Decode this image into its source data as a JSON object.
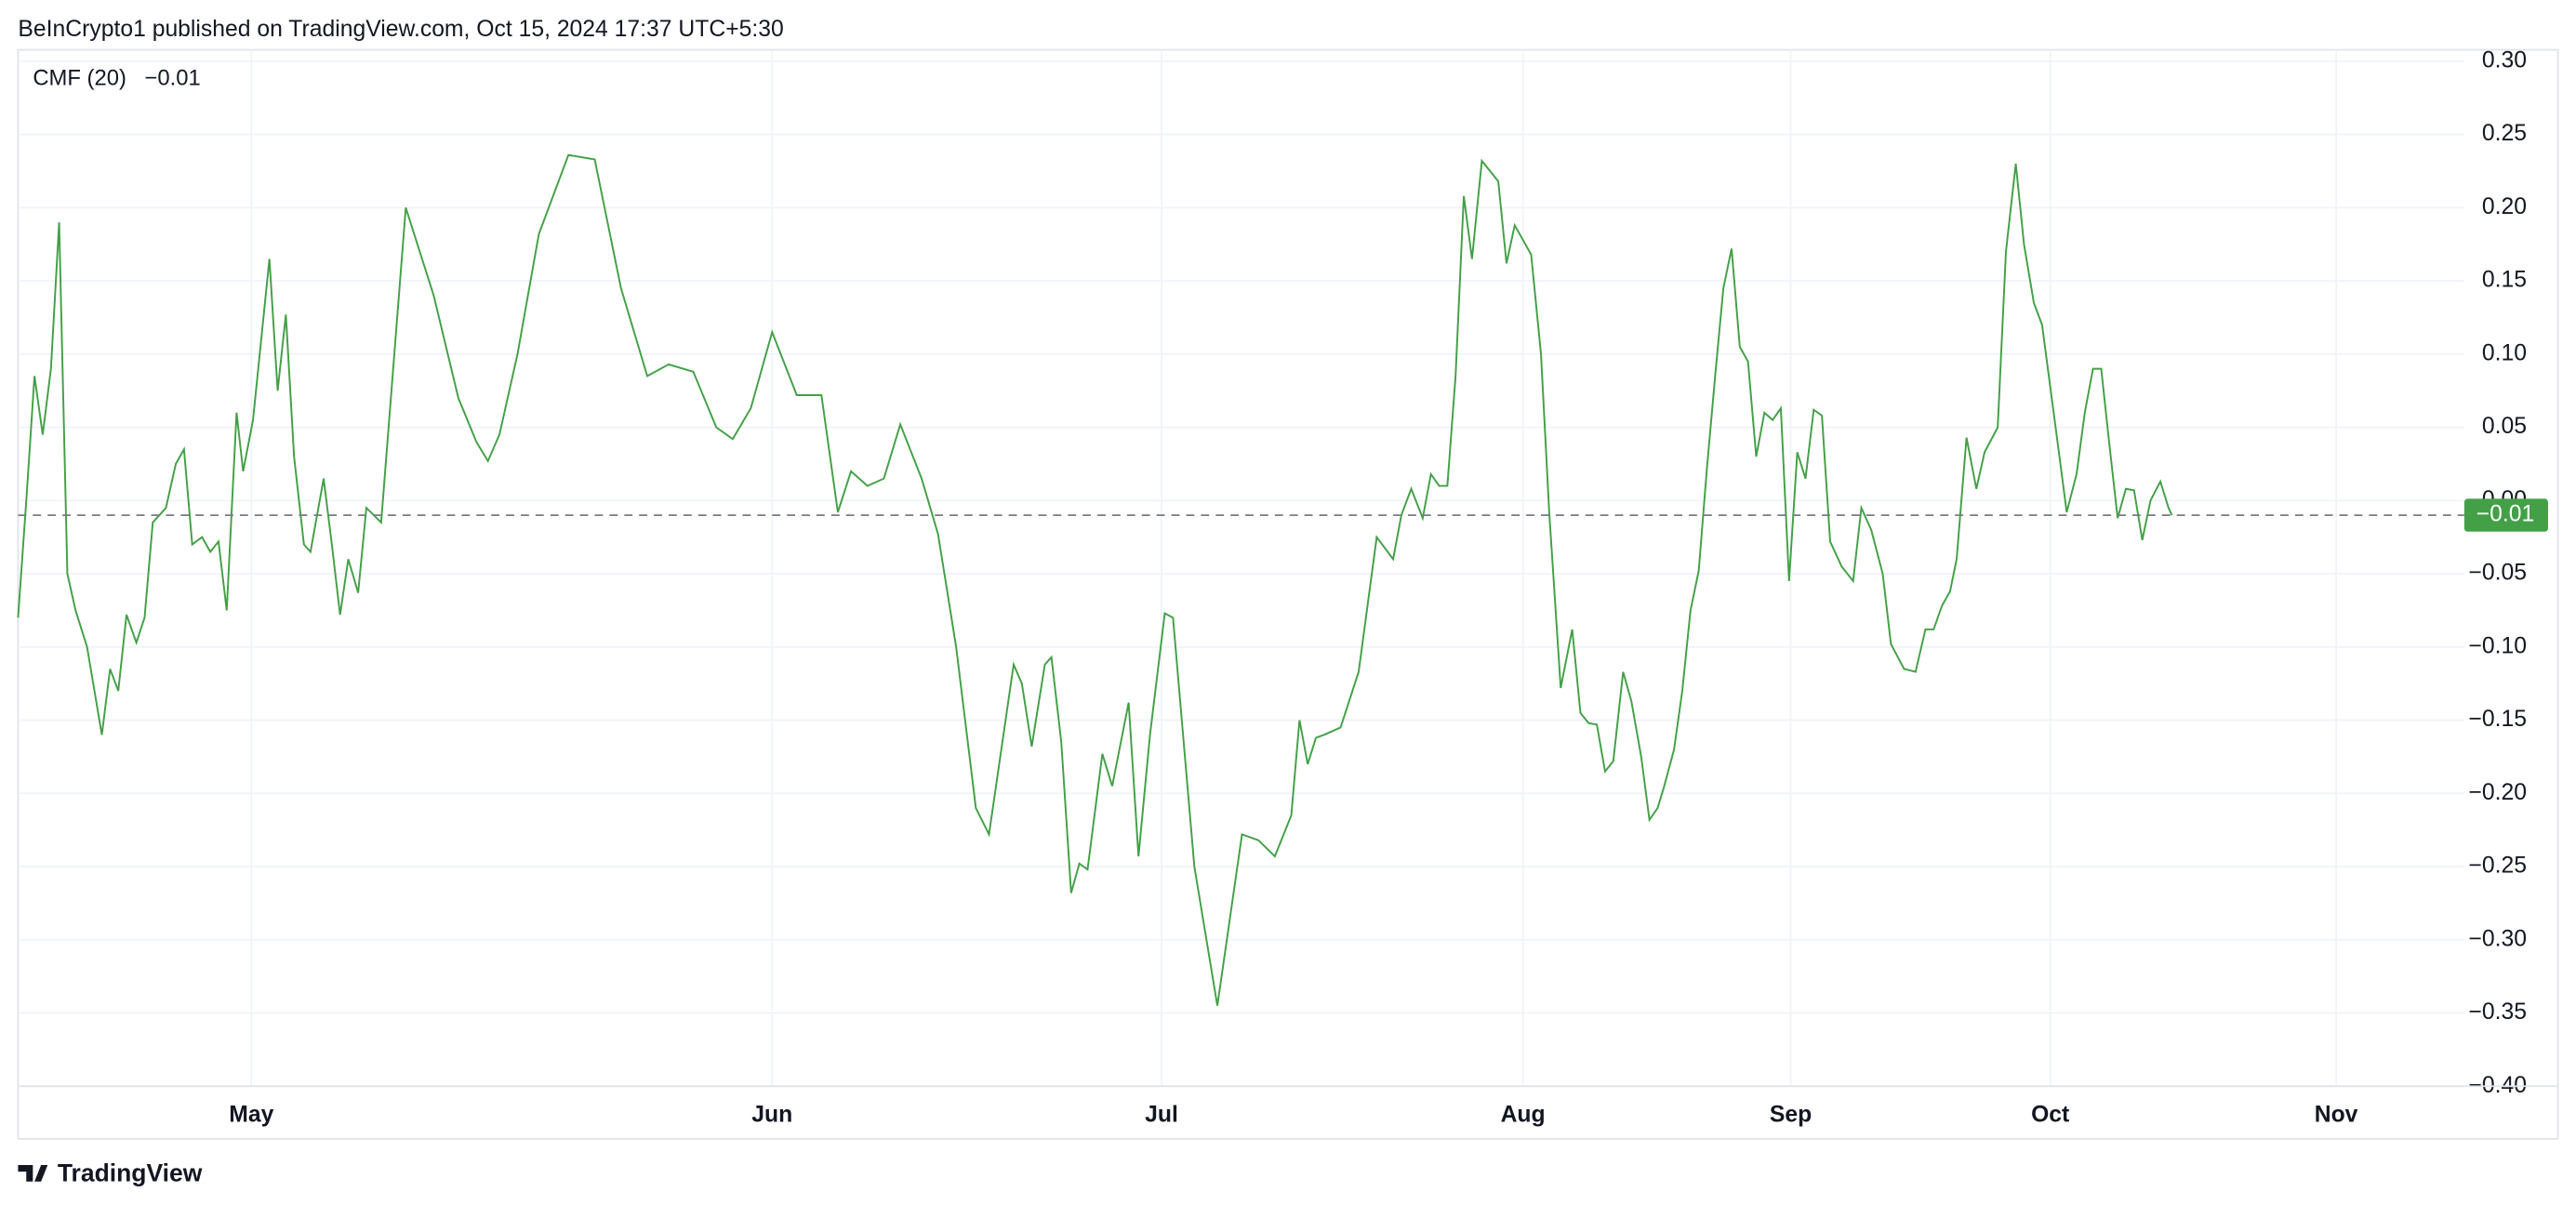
{
  "header": "BeInCrypto1 published on TradingView.com, Oct 15, 2024 17:37 UTC+5:30",
  "footer": "TradingView",
  "chart_data": {
    "type": "line",
    "series": [
      {
        "name": "CMF (20)",
        "color": "#43a047",
        "x": [
          0,
          5,
          10,
          15,
          20,
          25,
          30,
          35,
          42,
          51,
          56,
          61,
          66,
          72,
          77,
          82,
          90,
          96,
          101,
          106,
          112,
          117,
          122,
          127,
          133,
          137,
          143,
          148,
          153,
          158,
          163,
          168,
          174,
          178,
          186,
          191,
          196,
          201,
          207,
          212,
          221,
          236,
          253,
          268,
          279,
          286,
          293,
          304,
          317,
          335,
          351,
          367,
          383,
          396,
          411,
          425,
          435,
          446,
          459,
          474,
          489,
          499,
          507,
          517,
          527,
          537,
          550,
          560,
          571,
          583,
          591,
          606,
          611,
          617,
          625,
          629,
          635,
          641,
          646,
          651,
          660,
          666,
          676,
          682,
          689,
          698,
          703,
          716,
          730,
          745,
          755,
          765,
          775,
          780,
          785,
          790,
          795,
          805,
          816,
          827,
          837,
          842,
          848,
          855,
          860,
          865,
          870,
          875,
          880,
          885,
          891,
          896,
          901,
          906,
          911,
          921,
          927,
          932,
          939,
          946,
          951,
          956,
          961,
          966,
          971,
          977,
          982,
          988,
          993,
          998,
          1002,
          1008,
          1013,
          1018,
          1023,
          1028,
          1033,
          1038,
          1043,
          1048,
          1053,
          1058,
          1063,
          1068,
          1073,
          1078,
          1083,
          1088,
          1093,
          1098,
          1103,
          1110,
          1117,
          1122,
          1128,
          1135,
          1140,
          1148,
          1155,
          1161,
          1166,
          1171,
          1176,
          1180,
          1186,
          1192,
          1197,
          1205,
          1210,
          1216,
          1221,
          1227,
          1232,
          1242,
          1247,
          1253,
          1258,
          1263,
          1268,
          1273,
          1278,
          1283,
          1288,
          1293,
          1298,
          1304,
          1309,
          1311
        ],
        "values": [
          -0.08,
          0.0,
          0.085,
          0.045,
          0.09,
          0.19,
          -0.05,
          -0.075,
          -0.1,
          -0.16,
          -0.115,
          -0.13,
          -0.078,
          -0.097,
          -0.08,
          -0.015,
          -0.005,
          0.025,
          0.035,
          -0.03,
          -0.025,
          -0.035,
          -0.028,
          -0.075,
          0.06,
          0.02,
          0.055,
          0.11,
          0.165,
          0.075,
          0.127,
          0.03,
          -0.03,
          -0.035,
          0.015,
          -0.03,
          -0.078,
          -0.04,
          -0.063,
          -0.005,
          -0.015,
          0.2,
          0.14,
          0.07,
          0.04,
          0.027,
          0.045,
          0.1,
          0.182,
          0.236,
          0.233,
          0.145,
          0.085,
          0.093,
          0.088,
          0.05,
          0.042,
          0.063,
          0.115,
          0.072,
          0.072,
          -0.008,
          0.02,
          0.01,
          0.015,
          0.052,
          0.015,
          -0.023,
          -0.1,
          -0.21,
          -0.228,
          -0.112,
          -0.125,
          -0.168,
          -0.112,
          -0.107,
          -0.165,
          -0.268,
          -0.248,
          -0.252,
          -0.173,
          -0.195,
          -0.138,
          -0.243,
          -0.16,
          -0.077,
          -0.08,
          -0.25,
          -0.345,
          -0.228,
          -0.232,
          -0.243,
          -0.215,
          -0.15,
          -0.18,
          -0.162,
          -0.16,
          -0.155,
          -0.117,
          -0.025,
          -0.04,
          -0.01,
          0.008,
          -0.012,
          0.018,
          0.01,
          0.01,
          0.085,
          0.208,
          0.165,
          0.232,
          0.225,
          0.218,
          0.162,
          0.188,
          0.168,
          0.1,
          -0.008,
          -0.128,
          -0.088,
          -0.145,
          -0.152,
          -0.153,
          -0.185,
          -0.178,
          -0.117,
          -0.137,
          -0.175,
          -0.218,
          -0.21,
          -0.195,
          -0.17,
          -0.13,
          -0.075,
          -0.048,
          0.022,
          0.085,
          0.145,
          0.172,
          0.105,
          0.095,
          0.03,
          0.06,
          0.055,
          0.063,
          -0.055,
          0.033,
          0.015,
          0.062,
          0.058,
          -0.028,
          -0.045,
          -0.055,
          -0.005,
          -0.02,
          -0.05,
          -0.098,
          -0.115,
          -0.117,
          -0.088,
          -0.088,
          -0.072,
          -0.062,
          -0.04,
          0.043,
          0.008,
          0.033,
          0.05,
          0.17,
          0.23,
          0.175,
          0.135,
          0.12,
          0.035,
          -0.008,
          0.018,
          0.06,
          0.09,
          0.09,
          0.038,
          -0.012,
          0.008,
          0.007,
          -0.027,
          0.0,
          0.013,
          -0.005,
          -0.01
        ]
      }
    ],
    "current_value": -0.01,
    "current_value_label": "−0.01",
    "xlim": [
      0,
      1489
    ],
    "xticks": [
      {
        "value": 142,
        "label": "May"
      },
      {
        "value": 459,
        "label": "Jun"
      },
      {
        "value": 696,
        "label": "Jul"
      },
      {
        "value": 916,
        "label": "Aug"
      },
      {
        "value": 1079,
        "label": "Sep"
      },
      {
        "value": 1237,
        "label": "Oct"
      },
      {
        "value": 1411,
        "label": "Nov"
      }
    ],
    "ylim": [
      -0.4,
      0.3
    ],
    "yticks": [
      {
        "value": 0.3,
        "label": "0.30"
      },
      {
        "value": 0.25,
        "label": "0.25"
      },
      {
        "value": 0.2,
        "label": "0.20"
      },
      {
        "value": 0.15,
        "label": "0.15"
      },
      {
        "value": 0.1,
        "label": "0.10"
      },
      {
        "value": 0.05,
        "label": "0.05"
      },
      {
        "value": 0,
        "label": "0.00"
      },
      {
        "value": -0.05,
        "label": "−0.05"
      },
      {
        "value": -0.1,
        "label": "−0.10"
      },
      {
        "value": -0.15,
        "label": "−0.15"
      },
      {
        "value": -0.2,
        "label": "−0.20"
      },
      {
        "value": -0.25,
        "label": "−0.25"
      },
      {
        "value": -0.3,
        "label": "−0.30"
      },
      {
        "value": -0.35,
        "label": "−0.35"
      },
      {
        "value": -0.4,
        "label": "−0.40"
      }
    ],
    "grid": true
  }
}
